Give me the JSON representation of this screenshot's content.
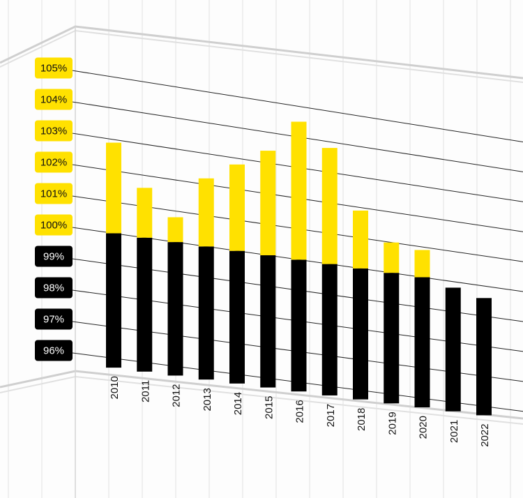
{
  "chart_data": {
    "type": "bar",
    "title": "",
    "xlabel": "",
    "ylabel": "",
    "ylim": [
      95.5,
      105.5
    ],
    "y_ticks": [
      "96%",
      "97%",
      "98%",
      "99%",
      "100%",
      "101%",
      "102%",
      "103%",
      "104%",
      "105%"
    ],
    "categories": [
      "2010",
      "2011",
      "2012",
      "2013",
      "2014",
      "2015",
      "2016",
      "2017",
      "2018",
      "2019",
      "2020",
      "2021",
      "2022"
    ],
    "values": [
      102.9,
      101.6,
      100.8,
      102.2,
      102.8,
      103.4,
      104.5,
      103.8,
      101.9,
      101.0,
      100.9,
      99.8,
      99.6
    ],
    "baseline": 100,
    "colors": {
      "above_baseline": "#ffe100",
      "below_baseline": "#000000",
      "tick_box_above": "#ffe100",
      "tick_box_below": "#000000",
      "tick_text_above": "#111111",
      "tick_text_below": "#ffffff",
      "background": "#ffffff",
      "facade_lines": "#e3e3e3",
      "grid_lines": "#222222"
    },
    "grid": true,
    "legend": "none",
    "background": "white building facade photo, perspective view"
  }
}
